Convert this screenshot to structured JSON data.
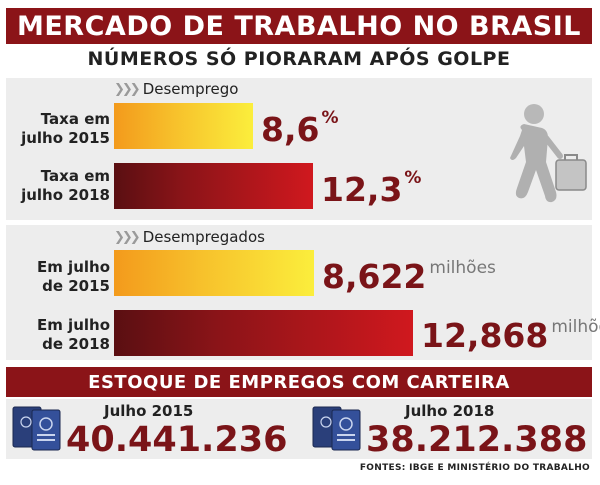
{
  "title": "MERCADO DE TRABALHO NO BRASIL",
  "subtitle": "NÚMEROS SÓ PIORARAM APÓS GOLPE",
  "chart_data": [
    {
      "type": "bar",
      "title": "Desemprego",
      "categories": [
        "Taxa em julho 2015",
        "Taxa em julho 2018"
      ],
      "values": [
        8.6,
        12.3
      ],
      "value_labels": [
        "8,6",
        "12,3"
      ],
      "unit": "%",
      "colors": [
        "#f7c22c",
        "#8b1418"
      ]
    },
    {
      "type": "bar",
      "title": "Desempregados",
      "categories": [
        "Em julho de 2015",
        "Em julho de 2018"
      ],
      "values": [
        8.622,
        12.868
      ],
      "value_labels": [
        "8,622",
        "12,868"
      ],
      "unit": "milhões",
      "colors": [
        "#f7c22c",
        "#8b1418"
      ]
    }
  ],
  "labels": {
    "taxa2015_line1": "Taxa em",
    "taxa2015_line2": "julho 2015",
    "taxa2018_line1": "Taxa em",
    "taxa2018_line2": "julho 2018",
    "em2015_line1": "Em julho",
    "em2015_line2": "de 2015",
    "em2018_line1": "Em julho",
    "em2018_line2": "de 2018"
  },
  "stock": {
    "title": "ESTOQUE DE EMPREGOS COM CARTEIRA",
    "items": [
      {
        "label": "Julho 2015",
        "value": "40.441.236"
      },
      {
        "label": "Julho 2018",
        "value": "38.212.388"
      }
    ]
  },
  "footnote": "FONTES: IBGE E MINISTÉRIO DO TRABALHO",
  "icons": [
    "chevron-double-icon",
    "walking-worker-briefcase-icon",
    "work-card-booklet-icon"
  ]
}
